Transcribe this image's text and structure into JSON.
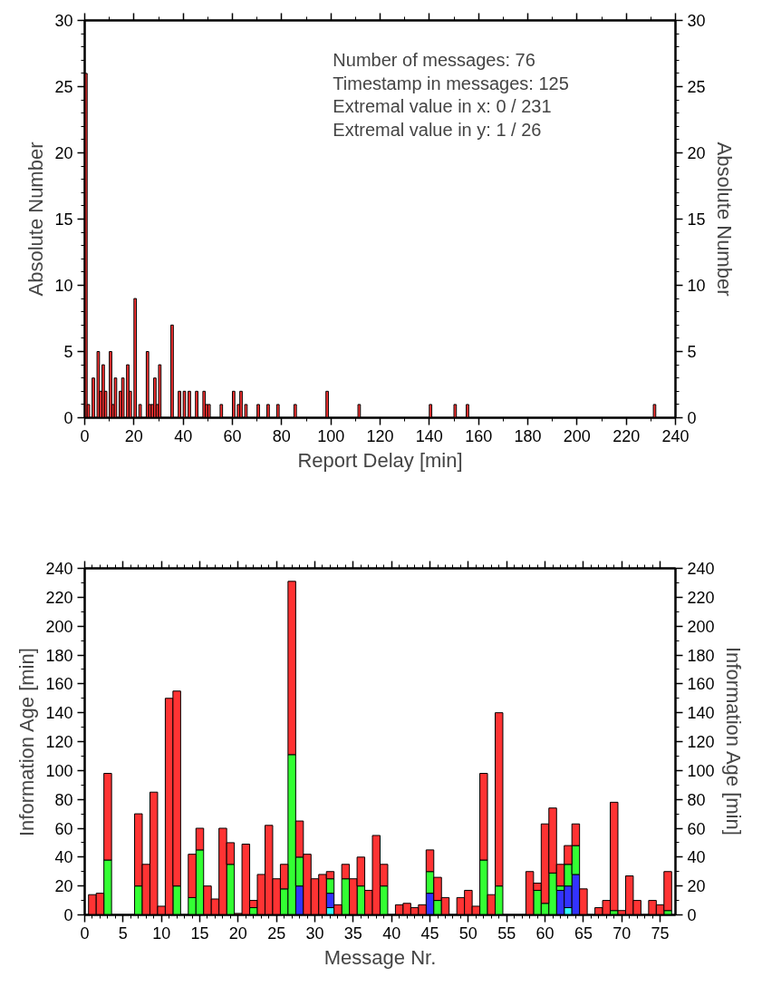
{
  "chart_data": [
    {
      "type": "histogram",
      "xlabel": "Report Delay [min]",
      "ylabel": "Absolute Number",
      "y2label": "Absolute Number",
      "color": "#ff3333",
      "bins": [
        0,
        1,
        2,
        3,
        4,
        5,
        6,
        7,
        8,
        9,
        10,
        11,
        12,
        13,
        14,
        15,
        16,
        17,
        18,
        19,
        20,
        21,
        22,
        23,
        25,
        26,
        27,
        28,
        29,
        30,
        31,
        35,
        36,
        38,
        39,
        40,
        41,
        42,
        43,
        45,
        46,
        48,
        49,
        50,
        51,
        55,
        56,
        60,
        61,
        62,
        63,
        64,
        65,
        66,
        70,
        71,
        74,
        75,
        78,
        79,
        85,
        86,
        98,
        99,
        111,
        112,
        140,
        141,
        150,
        151,
        155,
        156,
        231,
        232
      ],
      "values": [
        26,
        1,
        0,
        3,
        0,
        5,
        2,
        4,
        2,
        0,
        5,
        1,
        3,
        0,
        2,
        3,
        0,
        4,
        2,
        0,
        9,
        0,
        1,
        0,
        5,
        1,
        1,
        3,
        1,
        4,
        0,
        7,
        0,
        2,
        0,
        2,
        0,
        2,
        0,
        2,
        0,
        2,
        1,
        1,
        0,
        1,
        0,
        2,
        0,
        1,
        2,
        0,
        1,
        0,
        1,
        0,
        1,
        0,
        1,
        0,
        1,
        0,
        2,
        0,
        1,
        0,
        1,
        0,
        1,
        0,
        1,
        0,
        1
      ],
      "xlim": [
        0,
        240
      ],
      "xticks": [
        0,
        20,
        40,
        60,
        80,
        100,
        120,
        140,
        160,
        180,
        200,
        220,
        240
      ],
      "ylim": [
        0,
        30
      ],
      "yticks": [
        0,
        5,
        10,
        15,
        20,
        25,
        30
      ],
      "y2lim": [
        0,
        30
      ],
      "y2ticks": [
        0,
        5,
        10,
        15,
        20,
        25,
        30
      ],
      "annotations": [
        "Number of messages:        76",
        "Timestamp in messages:   125",
        "Extremal value in x:       0 / 231",
        "Extremal value in y:       1 /  26"
      ]
    },
    {
      "type": "bar",
      "stacked": true,
      "xlabel": "Message Nr.",
      "ylabel": "Information Age [min]",
      "y2label": "Information Age [min]",
      "x": [
        1,
        2,
        3,
        4,
        5,
        6,
        7,
        8,
        9,
        10,
        11,
        12,
        13,
        14,
        15,
        16,
        17,
        18,
        19,
        20,
        21,
        22,
        23,
        24,
        25,
        26,
        27,
        28,
        29,
        30,
        31,
        32,
        33,
        34,
        35,
        36,
        37,
        38,
        39,
        40,
        41,
        42,
        43,
        44,
        45,
        46,
        47,
        48,
        49,
        50,
        51,
        52,
        53,
        54,
        55,
        56,
        57,
        58,
        59,
        60,
        61,
        62,
        63,
        64,
        65,
        66,
        67,
        68,
        69,
        70,
        71,
        72,
        73,
        74,
        75,
        76
      ],
      "series": [
        {
          "color": "#33ffff",
          "values": [
            0,
            0,
            0,
            null,
            null,
            null,
            0,
            0,
            0,
            0,
            0,
            0,
            null,
            0,
            0,
            0,
            0,
            0,
            0,
            0,
            0,
            0,
            0,
            0,
            0,
            0,
            0,
            0,
            0,
            0,
            0,
            5,
            0,
            0,
            0,
            0,
            0,
            0,
            0,
            null,
            0,
            0,
            0,
            0,
            0,
            0,
            0,
            null,
            0,
            0,
            0,
            0,
            0,
            0,
            null,
            null,
            null,
            0,
            0,
            0,
            0,
            0,
            5,
            0,
            0,
            null,
            0,
            0,
            0,
            0,
            0,
            0,
            null,
            0,
            0,
            0
          ]
        },
        {
          "color": "#3333ff",
          "values": [
            0,
            0,
            0,
            null,
            null,
            null,
            0,
            0,
            0,
            0,
            0,
            0,
            null,
            0,
            0,
            0,
            0,
            0,
            0,
            0,
            0,
            0,
            0,
            0,
            0,
            0,
            0,
            20,
            0,
            0,
            0,
            10,
            0,
            0,
            0,
            0,
            0,
            0,
            0,
            null,
            0,
            0,
            0,
            0,
            15,
            0,
            0,
            null,
            0,
            0,
            0,
            0,
            0,
            0,
            null,
            null,
            null,
            0,
            0,
            0,
            0,
            17,
            15,
            28,
            0,
            null,
            0,
            0,
            0,
            0,
            0,
            0,
            null,
            0,
            0,
            0
          ]
        },
        {
          "color": "#33ff33",
          "values": [
            0,
            0,
            38,
            null,
            null,
            null,
            20,
            0,
            0,
            0,
            0,
            20,
            null,
            12,
            45,
            0,
            0,
            0,
            35,
            0,
            0,
            5,
            0,
            0,
            0,
            18,
            111,
            20,
            0,
            0,
            0,
            10,
            0,
            25,
            0,
            20,
            0,
            0,
            20,
            null,
            0,
            0,
            0,
            0,
            15,
            10,
            0,
            null,
            0,
            0,
            0,
            38,
            0,
            20,
            null,
            null,
            null,
            0,
            17,
            8,
            29,
            3,
            15,
            20,
            0,
            null,
            0,
            0,
            3,
            0,
            0,
            0,
            null,
            0,
            0,
            3
          ]
        },
        {
          "color": "#ff3333",
          "values": [
            14,
            15,
            60,
            null,
            null,
            null,
            50,
            35,
            85,
            6,
            150,
            135,
            null,
            30,
            15,
            20,
            11,
            60,
            15,
            1,
            49,
            5,
            28,
            62,
            25,
            17,
            120,
            25,
            42,
            25,
            28,
            5,
            7,
            10,
            25,
            20,
            17,
            55,
            15,
            null,
            7,
            8,
            5,
            7,
            15,
            16,
            12,
            null,
            12,
            17,
            6,
            60,
            14,
            120,
            null,
            null,
            null,
            30,
            5,
            55,
            45,
            15,
            13,
            15,
            18,
            null,
            5,
            10,
            75,
            3,
            27,
            10,
            null,
            10,
            7,
            27
          ]
        }
      ],
      "xlim": [
        0,
        77
      ],
      "xticks": [
        0,
        5,
        10,
        15,
        20,
        25,
        30,
        35,
        40,
        45,
        50,
        55,
        60,
        65,
        70,
        75
      ],
      "ylim": [
        0,
        240
      ],
      "yticks": [
        0,
        20,
        40,
        60,
        80,
        100,
        120,
        140,
        160,
        180,
        200,
        220,
        240
      ],
      "y2lim": [
        0,
        240
      ],
      "y2ticks": [
        0,
        20,
        40,
        60,
        80,
        100,
        120,
        140,
        160,
        180,
        200,
        220,
        240
      ]
    }
  ]
}
